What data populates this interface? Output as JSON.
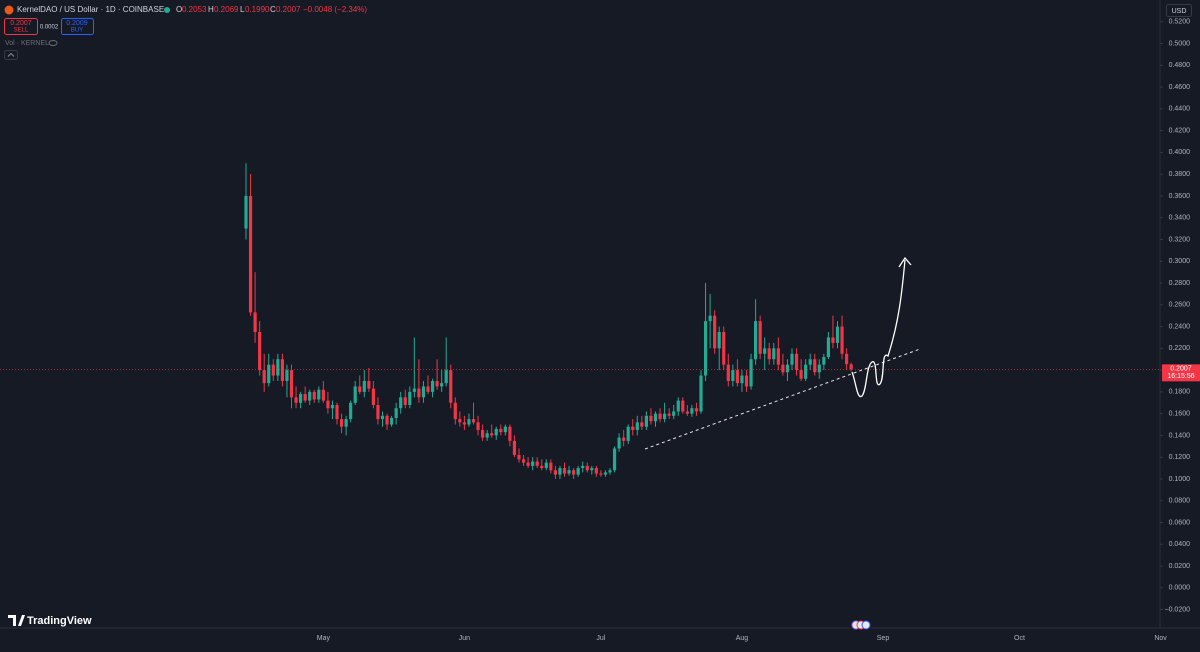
{
  "chart_data": {
    "type": "candlestick",
    "header": {
      "symbol": "KernelDAO / US Dollar · 1D · COINBASE",
      "o_label": "O",
      "open": "0.2053",
      "h_label": "H",
      "high": "0.2069",
      "l_label": "L",
      "low": "0.1990",
      "c_label": "C",
      "close": "0.2007",
      "change": "−0.0048 (−2.34%)"
    },
    "trade": {
      "sell_price": "0.2007",
      "sell": "SELL",
      "spread": "0.0002",
      "buy_price": "0.2009",
      "buy": "BUY"
    },
    "volume_label": "Vol · KERNEL",
    "currency": "USD",
    "last_price": {
      "price": "0.2007",
      "countdown": "16:15:56"
    },
    "brand": "TradingView",
    "up_color": "#22ab94",
    "down_color": "#f23645",
    "ylim": [
      -0.036,
      0.54
    ],
    "yticks": [
      {
        "value": 0.52,
        "label": "0.5200"
      },
      {
        "value": 0.5,
        "label": "0.5000"
      },
      {
        "value": 0.48,
        "label": "0.4800"
      },
      {
        "value": 0.46,
        "label": "0.4600"
      },
      {
        "value": 0.44,
        "label": "0.4400"
      },
      {
        "value": 0.42,
        "label": "0.4200"
      },
      {
        "value": 0.4,
        "label": "0.4000"
      },
      {
        "value": 0.38,
        "label": "0.3800"
      },
      {
        "value": 0.36,
        "label": "0.3600"
      },
      {
        "value": 0.34,
        "label": "0.3400"
      },
      {
        "value": 0.32,
        "label": "0.3200"
      },
      {
        "value": 0.3,
        "label": "0.3000"
      },
      {
        "value": 0.28,
        "label": "0.2800"
      },
      {
        "value": 0.26,
        "label": "0.2600"
      },
      {
        "value": 0.24,
        "label": "0.2400"
      },
      {
        "value": 0.22,
        "label": "0.2200"
      },
      {
        "value": 0.2,
        "label": "0.2000"
      },
      {
        "value": 0.18,
        "label": "0.1800"
      },
      {
        "value": 0.16,
        "label": "0.1600"
      },
      {
        "value": 0.14,
        "label": "0.1400"
      },
      {
        "value": 0.12,
        "label": "0.1200"
      },
      {
        "value": 0.1,
        "label": "0.1000"
      },
      {
        "value": 0.08,
        "label": "0.0800"
      },
      {
        "value": 0.06,
        "label": "0.0600"
      },
      {
        "value": 0.04,
        "label": "0.0400"
      },
      {
        "value": 0.02,
        "label": "0.0200"
      },
      {
        "value": 0,
        "label": "0.0000"
      },
      {
        "value": -0.02,
        "label": "−0.0200"
      }
    ],
    "categories": [
      null,
      null,
      null,
      null,
      null,
      null,
      null,
      null,
      null,
      null,
      null,
      null,
      null,
      null,
      null,
      null,
      null,
      "May",
      null,
      null,
      null,
      null,
      null,
      null,
      null,
      null,
      null,
      null,
      null,
      null,
      null,
      null,
      null,
      null,
      null,
      null,
      null,
      null,
      null,
      null,
      null,
      null,
      null,
      null,
      null,
      null,
      null,
      null,
      "Jun",
      null,
      null,
      null,
      null,
      null,
      null,
      null,
      null,
      null,
      null,
      null,
      null,
      null,
      null,
      null,
      null,
      null,
      null,
      null,
      null,
      null,
      null,
      null,
      null,
      null,
      null,
      null,
      null,
      null,
      "Jul",
      null,
      null,
      null,
      null,
      null,
      null,
      null,
      null,
      null,
      null,
      null,
      null,
      null,
      null,
      null,
      null,
      null,
      null,
      null,
      null,
      null,
      null,
      null,
      null,
      null,
      null,
      null,
      null,
      null,
      null,
      "Aug",
      null,
      null,
      null,
      null,
      null,
      null,
      null,
      null,
      null,
      null,
      null,
      null,
      null,
      null,
      null,
      null,
      null,
      null,
      null,
      null,
      null,
      null,
      null,
      null,
      null,
      null,
      null,
      null,
      null,
      null,
      "Sep",
      null,
      null,
      null,
      null,
      null,
      null,
      null,
      null,
      null,
      null,
      null,
      null,
      null,
      null,
      null,
      null,
      null,
      null,
      null,
      null,
      null,
      null,
      null,
      null,
      null,
      null,
      null,
      null,
      null,
      "Oct",
      null,
      null,
      null,
      null,
      null,
      null,
      null,
      null,
      null,
      null,
      null,
      null,
      null,
      null,
      null,
      null,
      null,
      null,
      null,
      null,
      null,
      null,
      null,
      null,
      null,
      null,
      null,
      null,
      null,
      null,
      "Nov"
    ],
    "ohlc": [
      [
        0.33,
        0.39,
        0.32,
        0.36
      ],
      [
        0.36,
        0.38,
        0.25,
        0.253
      ],
      [
        0.253,
        0.29,
        0.225,
        0.235
      ],
      [
        0.235,
        0.245,
        0.195,
        0.2
      ],
      [
        0.2,
        0.215,
        0.18,
        0.188
      ],
      [
        0.188,
        0.215,
        0.185,
        0.205
      ],
      [
        0.205,
        0.21,
        0.19,
        0.195
      ],
      [
        0.195,
        0.215,
        0.19,
        0.21
      ],
      [
        0.21,
        0.215,
        0.185,
        0.19
      ],
      [
        0.19,
        0.205,
        0.175,
        0.2
      ],
      [
        0.2,
        0.205,
        0.165,
        0.175
      ],
      [
        0.175,
        0.185,
        0.165,
        0.17
      ],
      [
        0.17,
        0.18,
        0.165,
        0.178
      ],
      [
        0.178,
        0.185,
        0.17,
        0.172
      ],
      [
        0.172,
        0.182,
        0.168,
        0.18
      ],
      [
        0.18,
        0.182,
        0.17,
        0.173
      ],
      [
        0.173,
        0.185,
        0.17,
        0.182
      ],
      [
        0.182,
        0.19,
        0.17,
        0.172
      ],
      [
        0.172,
        0.18,
        0.16,
        0.165
      ],
      [
        0.165,
        0.172,
        0.155,
        0.168
      ],
      [
        0.168,
        0.17,
        0.15,
        0.155
      ],
      [
        0.155,
        0.16,
        0.142,
        0.148
      ],
      [
        0.148,
        0.158,
        0.14,
        0.155
      ],
      [
        0.155,
        0.172,
        0.152,
        0.17
      ],
      [
        0.17,
        0.19,
        0.168,
        0.185
      ],
      [
        0.185,
        0.195,
        0.178,
        0.18
      ],
      [
        0.18,
        0.2,
        0.175,
        0.19
      ],
      [
        0.19,
        0.202,
        0.18,
        0.183
      ],
      [
        0.183,
        0.19,
        0.165,
        0.168
      ],
      [
        0.168,
        0.175,
        0.15,
        0.155
      ],
      [
        0.155,
        0.162,
        0.148,
        0.158
      ],
      [
        0.158,
        0.16,
        0.145,
        0.15
      ],
      [
        0.15,
        0.158,
        0.148,
        0.156
      ],
      [
        0.156,
        0.17,
        0.15,
        0.165
      ],
      [
        0.165,
        0.18,
        0.16,
        0.175
      ],
      [
        0.175,
        0.182,
        0.165,
        0.168
      ],
      [
        0.168,
        0.185,
        0.165,
        0.18
      ],
      [
        0.18,
        0.23,
        0.175,
        0.183
      ],
      [
        0.183,
        0.21,
        0.17,
        0.175
      ],
      [
        0.175,
        0.19,
        0.17,
        0.185
      ],
      [
        0.185,
        0.195,
        0.178,
        0.18
      ],
      [
        0.18,
        0.192,
        0.175,
        0.19
      ],
      [
        0.19,
        0.21,
        0.182,
        0.185
      ],
      [
        0.185,
        0.2,
        0.18,
        0.188
      ],
      [
        0.188,
        0.23,
        0.185,
        0.2
      ],
      [
        0.2,
        0.205,
        0.165,
        0.17
      ],
      [
        0.17,
        0.175,
        0.15,
        0.155
      ],
      [
        0.155,
        0.162,
        0.148,
        0.152
      ],
      [
        0.152,
        0.158,
        0.145,
        0.15
      ],
      [
        0.15,
        0.16,
        0.148,
        0.155
      ],
      [
        0.155,
        0.17,
        0.15,
        0.152
      ],
      [
        0.152,
        0.158,
        0.14,
        0.145
      ],
      [
        0.145,
        0.15,
        0.135,
        0.138
      ],
      [
        0.138,
        0.145,
        0.135,
        0.142
      ],
      [
        0.142,
        0.15,
        0.138,
        0.14
      ],
      [
        0.14,
        0.148,
        0.136,
        0.146
      ],
      [
        0.146,
        0.15,
        0.14,
        0.143
      ],
      [
        0.143,
        0.15,
        0.14,
        0.148
      ],
      [
        0.148,
        0.15,
        0.13,
        0.135
      ],
      [
        0.135,
        0.14,
        0.12,
        0.122
      ],
      [
        0.122,
        0.128,
        0.115,
        0.118
      ],
      [
        0.118,
        0.122,
        0.112,
        0.115
      ],
      [
        0.115,
        0.12,
        0.11,
        0.112
      ],
      [
        0.112,
        0.12,
        0.108,
        0.116
      ],
      [
        0.116,
        0.12,
        0.11,
        0.112
      ],
      [
        0.112,
        0.118,
        0.108,
        0.11
      ],
      [
        0.11,
        0.118,
        0.108,
        0.115
      ],
      [
        0.115,
        0.118,
        0.105,
        0.108
      ],
      [
        0.108,
        0.112,
        0.1,
        0.104
      ],
      [
        0.104,
        0.112,
        0.1,
        0.11
      ],
      [
        0.11,
        0.115,
        0.102,
        0.105
      ],
      [
        0.105,
        0.112,
        0.103,
        0.108
      ],
      [
        0.108,
        0.11,
        0.1,
        0.104
      ],
      [
        0.104,
        0.112,
        0.102,
        0.11
      ],
      [
        0.11,
        0.116,
        0.106,
        0.112
      ],
      [
        0.112,
        0.115,
        0.106,
        0.108
      ],
      [
        0.108,
        0.112,
        0.104,
        0.11
      ],
      [
        0.11,
        0.112,
        0.102,
        0.105
      ],
      [
        0.105,
        0.108,
        0.102,
        0.104
      ],
      [
        0.104,
        0.108,
        0.102,
        0.106
      ],
      [
        0.106,
        0.11,
        0.104,
        0.108
      ],
      [
        0.108,
        0.13,
        0.106,
        0.128
      ],
      [
        0.128,
        0.142,
        0.125,
        0.138
      ],
      [
        0.138,
        0.145,
        0.13,
        0.135
      ],
      [
        0.135,
        0.15,
        0.132,
        0.148
      ],
      [
        0.148,
        0.155,
        0.14,
        0.145
      ],
      [
        0.145,
        0.158,
        0.14,
        0.152
      ],
      [
        0.152,
        0.158,
        0.145,
        0.148
      ],
      [
        0.148,
        0.162,
        0.145,
        0.158
      ],
      [
        0.158,
        0.165,
        0.15,
        0.153
      ],
      [
        0.153,
        0.162,
        0.148,
        0.16
      ],
      [
        0.16,
        0.165,
        0.152,
        0.155
      ],
      [
        0.155,
        0.17,
        0.152,
        0.16
      ],
      [
        0.16,
        0.165,
        0.155,
        0.158
      ],
      [
        0.158,
        0.168,
        0.155,
        0.162
      ],
      [
        0.162,
        0.175,
        0.158,
        0.172
      ],
      [
        0.172,
        0.175,
        0.16,
        0.162
      ],
      [
        0.162,
        0.168,
        0.158,
        0.16
      ],
      [
        0.16,
        0.168,
        0.157,
        0.165
      ],
      [
        0.165,
        0.17,
        0.158,
        0.162
      ],
      [
        0.162,
        0.2,
        0.16,
        0.195
      ],
      [
        0.195,
        0.28,
        0.19,
        0.245
      ],
      [
        0.245,
        0.27,
        0.22,
        0.25
      ],
      [
        0.25,
        0.255,
        0.215,
        0.22
      ],
      [
        0.22,
        0.24,
        0.2,
        0.235
      ],
      [
        0.235,
        0.24,
        0.2,
        0.205
      ],
      [
        0.205,
        0.215,
        0.185,
        0.19
      ],
      [
        0.19,
        0.205,
        0.185,
        0.2
      ],
      [
        0.2,
        0.21,
        0.185,
        0.188
      ],
      [
        0.188,
        0.2,
        0.18,
        0.195
      ],
      [
        0.195,
        0.2,
        0.18,
        0.185
      ],
      [
        0.185,
        0.215,
        0.182,
        0.21
      ],
      [
        0.21,
        0.265,
        0.205,
        0.245
      ],
      [
        0.245,
        0.25,
        0.21,
        0.215
      ],
      [
        0.215,
        0.23,
        0.2,
        0.22
      ],
      [
        0.22,
        0.225,
        0.205,
        0.21
      ],
      [
        0.21,
        0.225,
        0.205,
        0.22
      ],
      [
        0.22,
        0.23,
        0.2,
        0.205
      ],
      [
        0.205,
        0.215,
        0.195,
        0.198
      ],
      [
        0.198,
        0.21,
        0.19,
        0.205
      ],
      [
        0.205,
        0.22,
        0.2,
        0.215
      ],
      [
        0.215,
        0.22,
        0.195,
        0.2
      ],
      [
        0.2,
        0.21,
        0.19,
        0.192
      ],
      [
        0.192,
        0.21,
        0.19,
        0.205
      ],
      [
        0.205,
        0.215,
        0.2,
        0.21
      ],
      [
        0.21,
        0.215,
        0.195,
        0.198
      ],
      [
        0.198,
        0.21,
        0.192,
        0.205
      ],
      [
        0.205,
        0.215,
        0.2,
        0.212
      ],
      [
        0.212,
        0.235,
        0.21,
        0.23
      ],
      [
        0.23,
        0.25,
        0.22,
        0.225
      ],
      [
        0.225,
        0.245,
        0.22,
        0.24
      ],
      [
        0.24,
        0.25,
        0.21,
        0.215
      ],
      [
        0.215,
        0.22,
        0.2,
        0.2055
      ],
      [
        0.2053,
        0.2069,
        0.199,
        0.2007
      ],
      null,
      null,
      null,
      null,
      null,
      null,
      null,
      null,
      null,
      null,
      null,
      null,
      null,
      null,
      null,
      null,
      null,
      null,
      null,
      null,
      null,
      null,
      null,
      null,
      null,
      null,
      null,
      null,
      null,
      null,
      null,
      null,
      null,
      null,
      null,
      null,
      null,
      null,
      null,
      null,
      null,
      null,
      null,
      null,
      null,
      null,
      null,
      null,
      null,
      null,
      null,
      null,
      null,
      null,
      null,
      null,
      null,
      null,
      null,
      null,
      null,
      null,
      null,
      null,
      null,
      null,
      null,
      null
    ]
  }
}
